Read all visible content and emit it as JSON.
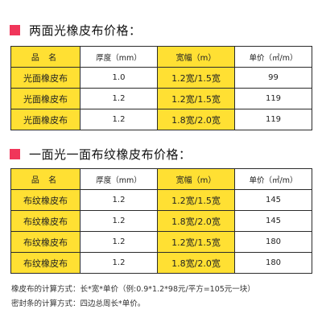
{
  "accent_marker_color": "#f0365a",
  "highlight_color": "#ffe033",
  "section1": {
    "title": "两面光橡皮布价格：",
    "headers": [
      "品 名",
      "厚度（mm）",
      "宽幅（m）",
      "单价（㎡/m）"
    ],
    "rows": [
      [
        "光面橡皮布",
        "1.0",
        "1.2宽/1.5宽",
        "99"
      ],
      [
        "光面橡皮布",
        "1.2",
        "1.2宽/1.5宽",
        "119"
      ],
      [
        "光面橡皮布",
        "1.2",
        "1.8宽/2.0宽",
        "119"
      ]
    ]
  },
  "section2": {
    "title": "一面光一面布纹橡皮布价格：",
    "headers": [
      "品 名",
      "厚度（mm）",
      "宽幅（m）",
      "单价（㎡/m）"
    ],
    "rows": [
      [
        "布纹橡皮布",
        "1.2",
        "1.2宽/1.5宽",
        "145"
      ],
      [
        "布纹橡皮布",
        "1.2",
        "1.8宽/2.0宽",
        "145"
      ],
      [
        "布纹橡皮布",
        "1.2",
        "1.2宽/1.5宽",
        "180"
      ],
      [
        "布纹橡皮布",
        "1.2",
        "1.8宽/2.0宽",
        "180"
      ]
    ]
  },
  "notes": [
    "橡皮布的计算方式：长*宽*单价（例:0.9*1.2*98元/平方=105元一块）",
    "密封条的计算方式：四边总周长*单价。"
  ]
}
